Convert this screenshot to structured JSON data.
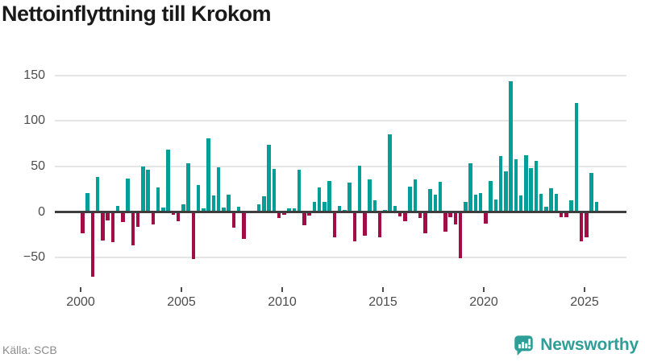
{
  "header": {
    "title": "Nettoinflyttning till Krokom"
  },
  "footer": {
    "source": "Källa: SCB",
    "brand": "Newsworthy"
  },
  "colors": {
    "positive_bar": "#019f97",
    "negative_bar": "#a00d47",
    "brand_teal": "#2d9f98",
    "grid": "#e5e5e5",
    "zero_line": "#3d3d3d",
    "axis_text": "#4d4d4d",
    "title_text": "#1a1a1a",
    "source_text": "#8c8c8c"
  },
  "chart_data": {
    "type": "bar",
    "title": "Nettoinflyttning till Krokom",
    "series_name": "Nettoinflyttning",
    "frequency": "quarterly",
    "first_period": "2000-Q1",
    "last_period": "2025-Q3",
    "xlabel": "",
    "ylabel": "",
    "ylim": [
      -80,
      160
    ],
    "grid": true,
    "legend": false,
    "y_ticks": [
      150,
      100,
      50,
      0,
      -50
    ],
    "y_tick_labels": [
      "150",
      "100",
      "50",
      "0",
      "−50"
    ],
    "x_ticks": [
      2000,
      2005,
      2010,
      2015,
      2020,
      2025
    ],
    "x_tick_labels": [
      "2000",
      "2005",
      "2010",
      "2015",
      "2020",
      "2025"
    ],
    "years": [
      {
        "year": 2000,
        "values": [
          -23,
          21,
          -71,
          38
        ]
      },
      {
        "year": 2001,
        "values": [
          -31,
          -9,
          -33,
          7
        ]
      },
      {
        "year": 2002,
        "values": [
          -11,
          37,
          -37,
          -16
        ]
      },
      {
        "year": 2003,
        "values": [
          50,
          46,
          -14,
          27
        ]
      },
      {
        "year": 2004,
        "values": [
          5,
          68,
          -3,
          -10
        ]
      },
      {
        "year": 2005,
        "values": [
          8,
          53,
          -52,
          30
        ]
      },
      {
        "year": 2006,
        "values": [
          4,
          81,
          18,
          49
        ]
      },
      {
        "year": 2007,
        "values": [
          5,
          19,
          -17,
          6
        ]
      },
      {
        "year": 2008,
        "values": [
          -30,
          0,
          0,
          8
        ]
      },
      {
        "year": 2009,
        "values": [
          17,
          74,
          47,
          -7
        ]
      },
      {
        "year": 2010,
        "values": [
          -3,
          4,
          4,
          46
        ]
      },
      {
        "year": 2011,
        "values": [
          -15,
          -4,
          11,
          27
        ]
      },
      {
        "year": 2012,
        "values": [
          11,
          34,
          -28,
          7
        ]
      },
      {
        "year": 2013,
        "values": [
          2,
          32,
          -32,
          51
        ]
      },
      {
        "year": 2014,
        "values": [
          -26,
          36,
          13,
          -28
        ]
      },
      {
        "year": 2015,
        "values": [
          2,
          85,
          7,
          -5
        ]
      },
      {
        "year": 2016,
        "values": [
          -10,
          28,
          36,
          -7
        ]
      },
      {
        "year": 2017,
        "values": [
          -23,
          25,
          19,
          33
        ]
      },
      {
        "year": 2018,
        "values": [
          -22,
          -6,
          -14,
          -51
        ]
      },
      {
        "year": 2019,
        "values": [
          11,
          53,
          19,
          21
        ]
      },
      {
        "year": 2020,
        "values": [
          -13,
          34,
          14,
          61
        ]
      },
      {
        "year": 2021,
        "values": [
          45,
          143,
          58,
          18
        ]
      },
      {
        "year": 2022,
        "values": [
          62,
          48,
          56,
          20
        ]
      },
      {
        "year": 2023,
        "values": [
          6,
          26,
          20,
          -6
        ]
      },
      {
        "year": 2024,
        "values": [
          -6,
          13,
          120,
          -32
        ]
      },
      {
        "year": 2025,
        "values": [
          -28,
          43,
          11
        ]
      }
    ]
  }
}
